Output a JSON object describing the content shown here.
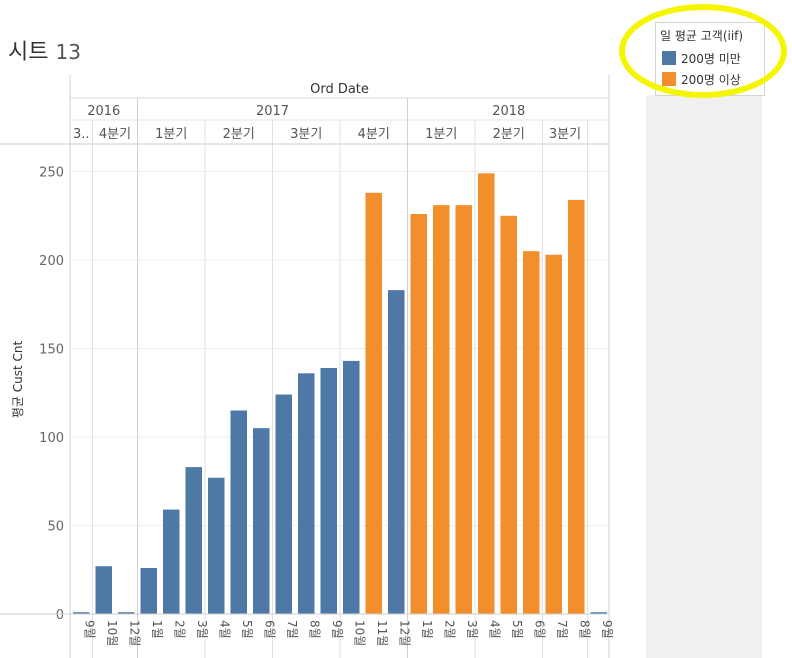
{
  "sheet": {
    "title": "시트",
    "number": "13"
  },
  "legend": {
    "title": "일 평균 고객(iif)",
    "items": [
      {
        "label": "200명 미만",
        "color": "#4e79a7"
      },
      {
        "label": "200명 이상",
        "color": "#f28e2b"
      }
    ]
  },
  "chart_data": {
    "type": "bar",
    "top_label": "Ord Date",
    "ylabel": "평균 Cust Cnt",
    "ylim": [
      0,
      265
    ],
    "yticks": [
      0,
      50,
      100,
      150,
      200,
      250
    ],
    "grid": true,
    "years": [
      {
        "label": "2016",
        "quarters": [
          {
            "label": "3..",
            "months": [
              {
                "label": "9월",
                "value": 1,
                "group": 0
              }
            ]
          },
          {
            "label": "4분기",
            "months": [
              {
                "label": "10월",
                "value": 27,
                "group": 0
              },
              {
                "label": "12월",
                "value": 1,
                "group": 0
              }
            ]
          }
        ]
      },
      {
        "label": "2017",
        "quarters": [
          {
            "label": "1분기",
            "months": [
              {
                "label": "1월",
                "value": 26,
                "group": 0
              },
              {
                "label": "2월",
                "value": 59,
                "group": 0
              },
              {
                "label": "3월",
                "value": 83,
                "group": 0
              }
            ]
          },
          {
            "label": "2분기",
            "months": [
              {
                "label": "4월",
                "value": 77,
                "group": 0
              },
              {
                "label": "5월",
                "value": 115,
                "group": 0
              },
              {
                "label": "6월",
                "value": 105,
                "group": 0
              }
            ]
          },
          {
            "label": "3분기",
            "months": [
              {
                "label": "7월",
                "value": 124,
                "group": 0
              },
              {
                "label": "8월",
                "value": 136,
                "group": 0
              },
              {
                "label": "9월",
                "value": 139,
                "group": 0
              }
            ]
          },
          {
            "label": "4분기",
            "months": [
              {
                "label": "10월",
                "value": 143,
                "group": 0
              },
              {
                "label": "11월",
                "value": 238,
                "group": 1
              },
              {
                "label": "12월",
                "value": 183,
                "group": 0
              }
            ]
          }
        ]
      },
      {
        "label": "2018",
        "quarters": [
          {
            "label": "1분기",
            "months": [
              {
                "label": "1월",
                "value": 226,
                "group": 1
              },
              {
                "label": "2월",
                "value": 231,
                "group": 1
              },
              {
                "label": "3월",
                "value": 231,
                "group": 1
              }
            ]
          },
          {
            "label": "2분기",
            "months": [
              {
                "label": "4월",
                "value": 249,
                "group": 1
              },
              {
                "label": "5월",
                "value": 225,
                "group": 1
              },
              {
                "label": "6월",
                "value": 205,
                "group": 1
              }
            ]
          },
          {
            "label": "3분기",
            "months": [
              {
                "label": "7월",
                "value": 203,
                "group": 1
              },
              {
                "label": "8월",
                "value": 234,
                "group": 1
              }
            ]
          },
          {
            "label": "",
            "months": [
              {
                "label": "9월",
                "value": 1,
                "group": 0
              }
            ]
          }
        ]
      }
    ]
  }
}
